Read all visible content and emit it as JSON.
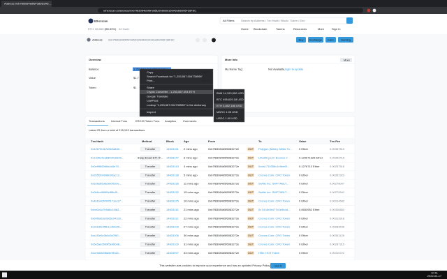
{
  "browser": {
    "tab_title": "Address 0xb7f83084b5f6F385D2A6...",
    "url": "etherscan.io/address/0xb7f83084b5f6F385D2A60B9160A6eB6006F38F8C"
  },
  "header": {
    "logo": "Etherscan",
    "eth_price": "ETH: $3,065.93",
    "eth_change": "(+0.59%)",
    "gas": "22 Gwei",
    "filter": "All Filters",
    "search_placeholder": "Search by Address / Txn Hash / Block / Token / Ens",
    "nav": [
      "Home",
      "Blockchain",
      "Tokens",
      "Resources",
      "More",
      "Sign In"
    ]
  },
  "address": {
    "label": "Address",
    "value": "0xb7f83084b5f6F385D2A60B9160A6eB6006F38F8C",
    "buttons": [
      "Buy",
      "Exchange",
      "Earn",
      "Gaming"
    ]
  },
  "overview": {
    "title": "Overview",
    "rows": [
      [
        "Balance",
        "1,253,567.004735596 Ether"
      ],
      [
        "Value",
        "$1,7"
      ],
      [
        "Token",
        "$1"
      ]
    ]
  },
  "more_info": {
    "title": "More Info",
    "more_button": "More",
    "name_tag_label": "My Name Tag:",
    "name_tag_value": "Not Available,",
    "login": "login to update"
  },
  "context_menu": {
    "items": [
      [
        "Copy",
        "Ctrl+C"
      ],
      [
        "Search Facebook for \"1,253,567.004735596\"",
        ""
      ],
      [
        "Print...",
        "Ctrl+P"
      ],
      [
        "Share",
        ""
      ],
      [
        "Crypto Converter - 1,253,567.004 ETH",
        ""
      ],
      [
        "Google Translate",
        ""
      ],
      [
        "LastPass",
        ""
      ],
      [
        "Lookup \"1,253,567.004735596\" in the dictionary",
        ""
      ],
      [
        "Inspect",
        ""
      ]
    ],
    "submenu": [
      "BNB 14,153,550 USD",
      "BTC 495,629.18 USD",
      "ETH 3,852,186 USD",
      "MATIC 1.05 USD",
      "USDC 1.00 USD"
    ]
  },
  "tabs": [
    "Transactions",
    "Internal Txns",
    "ERC20 Token Txns",
    "Analytics",
    "Comments"
  ],
  "summary": "Latest 25 from a total of 215,193 transactions",
  "table": {
    "columns": [
      "Txn Hash",
      "Method",
      "Block",
      "Age",
      "From",
      "To",
      "Value",
      "Txn Fee"
    ],
    "rows": [
      [
        "0x4267fed12d5b3a8d0...",
        "Transfer",
        "14603151",
        "2 mins ago",
        "0xb7f83084b5f6083272e",
        "OUT",
        "Polygon (Matic): Matic To...",
        "0 Ether",
        "0.00357519"
      ],
      [
        "0x13d5c4ea68b00c6d2b...",
        "Swap Exact ETH F...",
        "14603147",
        "3 mins ago",
        "0xb7f83084b5f6083272e",
        "OUT",
        "Lifesiting Ltd: Bounce 2",
        "0.129671325 Ether",
        "0.00353415"
      ],
      [
        "0x0ef9f660b6a4d4e70...",
        "Transfer",
        "14603143",
        "4 mins ago",
        "0xb7f83084b5f6083272e",
        "OUT",
        "0xda1710356c1e9ee6f...",
        "0.1276713 Ether",
        "0.00257518"
      ],
      [
        "0x2b5f2b0998b00ac13...",
        "Transfer",
        "14603138",
        "5 mins ago",
        "0xb7f83084b5f6083272e",
        "OUT",
        "Cronos Coin: CRO Token",
        "0 Ether",
        "0.00351923"
      ],
      [
        "0x52fa5f5d6c9b0f1b0e...",
        "Transfer",
        "14603136",
        "11 mins ago",
        "0xb7f83084b5f6083272e",
        "OUT",
        "Swftle Inc: SWFTABLT...",
        "0 Ether",
        "0.00278007"
      ],
      [
        "0x0b5cc9f8ff0c8f8ef5...",
        "Transfer",
        "14603132",
        "15 mins ago",
        "0xb7f83084b5f6083272e",
        "OUT",
        "Swftle Inc: SWFTABLT...",
        "0 Ether",
        "0.00279941"
      ],
      [
        "0x4b1b40f7005171ec27...",
        "Transfer",
        "14603125",
        "16 mins ago",
        "0xb7f83084b5f6083272e",
        "OUT",
        "Cronos Coin: CRO Token",
        "0 Ether",
        "0.00314682"
      ],
      [
        "0xbe0c4c7b9d6c1f4b2...",
        "Transfer",
        "14603115",
        "21 mins ago",
        "0xb7f83084b5f6083272e",
        "OUT",
        "0x7d14b9b477b1b9b4d...",
        "0.0653952 Ether",
        "0.00306853"
      ],
      [
        "0x60f6a52e0b65c941b0...",
        "Transfer",
        "14603112",
        "22 mins ago",
        "0xb7f83084b5f6083272e",
        "OUT",
        "Cronos Coin: CRO Token",
        "0 Ether",
        "0.00313918"
      ],
      [
        "0xd1b3fe9f5b1cd04c0b...",
        "Transfer",
        "14603109",
        "27 mins ago",
        "0xb7f83084b5f6083272e",
        "OUT",
        "Cronos Coin: CRO Token",
        "0 Ether",
        "0.00283546"
      ],
      [
        "0xa1f2e5e3b0c5e7f60...",
        "Transfer",
        "14603106",
        "30 mins ago",
        "0xb7f83084b5f6083272e",
        "OUT",
        "Cronos Coin: CRO Token",
        "0 Ether",
        "0.00301128"
      ],
      [
        "0x5e5ae9599f5e960d8...",
        "Transfer",
        "14603100",
        "31 mins ago",
        "0xb7f83084b5f6083272e",
        "OUT",
        "Cronos Coin: CRO Token",
        "0 Ether",
        "0.00287315"
      ],
      [
        "0xce9d2b6f8d5e9f1a3...",
        "Transfer",
        "14603097",
        "33 mins ago",
        "0xb7f83084b5f6083272e",
        "OUT",
        "Hifie: HOT Token",
        "0 Ether",
        "0.00315722"
      ]
    ]
  },
  "cookie": {
    "text": "This website uses cookies to improve your experience and has an updated Privacy Policy.",
    "button": "Got It"
  },
  "taskbar": {
    "time": "10:11",
    "date": "2022-04-17"
  }
}
